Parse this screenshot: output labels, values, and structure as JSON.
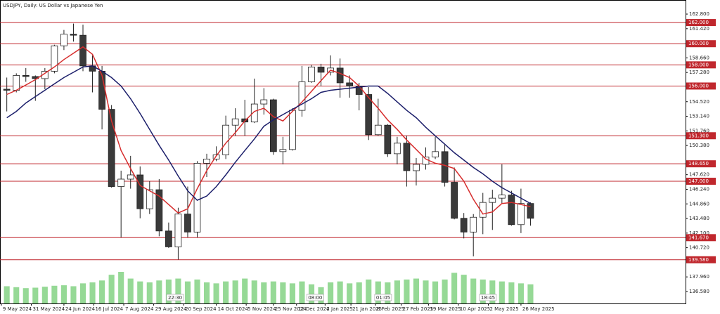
{
  "chart_data": {
    "type": "candlestick",
    "title": "USDJPY, Daily:  US Dollar vs Japanese Yen",
    "x": [
      "2024-05-13",
      "2024-05-20",
      "2024-05-27",
      "2024-06-03",
      "2024-06-10",
      "2024-06-17",
      "2024-06-24",
      "2024-07-01",
      "2024-07-08",
      "2024-07-15",
      "2024-07-22",
      "2024-07-29",
      "2024-08-05",
      "2024-08-12",
      "2024-08-19",
      "2024-08-26",
      "2024-09-02",
      "2024-09-09",
      "2024-09-16",
      "2024-09-23",
      "2024-09-30",
      "2024-10-07",
      "2024-10-14",
      "2024-10-21",
      "2024-10-28",
      "2024-11-04",
      "2024-11-11",
      "2024-11-18",
      "2024-11-25",
      "2024-12-02",
      "2024-12-09",
      "2024-12-16",
      "2024-12-23",
      "2024-12-30",
      "2025-01-06",
      "2025-01-13",
      "2025-01-20",
      "2025-01-27",
      "2025-02-03",
      "2025-02-10",
      "2025-02-17",
      "2025-02-24",
      "2025-03-03",
      "2025-03-10",
      "2025-03-17",
      "2025-03-24",
      "2025-03-31",
      "2025-04-07",
      "2025-04-14",
      "2025-04-21",
      "2025-04-28",
      "2025-05-05",
      "2025-05-12",
      "2025-05-19",
      "2025-05-26",
      "2025-06-02"
    ],
    "open": [
      155.7,
      155.6,
      157.0,
      156.9,
      156.7,
      157.4,
      159.8,
      160.9,
      160.8,
      157.9,
      157.4,
      153.8,
      146.5,
      147.2,
      147.6,
      144.4,
      146.2,
      142.3,
      140.8,
      143.9,
      142.2,
      148.7,
      149.1,
      149.5,
      152.3,
      152.9,
      152.6,
      154.3,
      154.7,
      149.8,
      150.0,
      153.7,
      156.4,
      157.8,
      157.3,
      157.7,
      156.3,
      156.0,
      155.2,
      151.4,
      152.3,
      149.6,
      150.6,
      148.0,
      148.6,
      149.3,
      149.8,
      146.9,
      143.5,
      142.2,
      143.6,
      145.0,
      145.4,
      145.7,
      142.9,
      144.9
    ],
    "high": [
      156.8,
      157.2,
      157.7,
      157.0,
      157.7,
      159.9,
      161.3,
      161.9,
      161.8,
      158.9,
      157.9,
      154.2,
      148.0,
      149.4,
      148.4,
      147.0,
      147.2,
      143.1,
      144.5,
      146.5,
      148.9,
      149.6,
      150.3,
      153.2,
      153.9,
      154.7,
      156.7,
      155.8,
      154.8,
      151.2,
      153.9,
      157.9,
      158.0,
      158.1,
      158.9,
      158.6,
      157.0,
      156.3,
      155.9,
      154.8,
      152.4,
      151.2,
      151.3,
      149.2,
      150.2,
      151.2,
      150.5,
      148.3,
      144.0,
      143.9,
      145.9,
      146.2,
      148.6,
      146.1,
      146.3,
      145.0
    ],
    "low": [
      153.6,
      155.4,
      156.4,
      154.6,
      155.7,
      157.2,
      159.4,
      160.2,
      157.4,
      155.4,
      151.9,
      146.4,
      141.7,
      146.3,
      143.5,
      143.9,
      141.8,
      140.7,
      139.6,
      141.7,
      141.7,
      147.4,
      148.9,
      149.1,
      151.3,
      151.3,
      152.5,
      153.3,
      149.5,
      148.6,
      149.9,
      153.1,
      156.3,
      156.0,
      157.0,
      154.9,
      154.9,
      153.7,
      150.9,
      151.3,
      149.3,
      148.6,
      146.5,
      146.6,
      148.1,
      149.1,
      146.5,
      143.4,
      141.6,
      139.9,
      142.0,
      142.4,
      144.9,
      142.8,
      142.1,
      142.8
    ],
    "close": [
      155.6,
      157.0,
      156.9,
      156.7,
      157.4,
      159.8,
      160.9,
      160.8,
      157.9,
      157.4,
      153.8,
      146.5,
      147.2,
      147.6,
      144.4,
      146.2,
      142.3,
      140.8,
      143.9,
      142.2,
      148.7,
      149.1,
      149.5,
      152.3,
      152.9,
      152.6,
      154.3,
      154.7,
      149.8,
      150.0,
      153.7,
      156.4,
      157.8,
      157.3,
      157.7,
      156.3,
      156.0,
      155.2,
      151.4,
      152.3,
      149.6,
      150.6,
      148.0,
      148.6,
      149.3,
      149.8,
      146.9,
      143.5,
      142.2,
      143.6,
      145.0,
      145.4,
      145.7,
      142.9,
      144.9,
      143.5
    ],
    "up_color": "#ffffff",
    "down_color": "#3a3a3a",
    "ma_lines": [
      {
        "color": "#d62d2d",
        "values": [
          155.2,
          155.6,
          156.1,
          156.6,
          157.2,
          157.8,
          158.5,
          159.1,
          159.7,
          159.0,
          157.0,
          152.7,
          149.9,
          148.2,
          146.6,
          146.1,
          145.6,
          144.8,
          144.0,
          144.4,
          146.3,
          148.0,
          149.4,
          150.6,
          151.6,
          152.7,
          153.6,
          153.9,
          153.1,
          152.7,
          153.6,
          154.5,
          155.5,
          156.5,
          157.5,
          157.2,
          156.8,
          156.0,
          154.9,
          153.9,
          152.8,
          151.9,
          150.9,
          150.0,
          149.1,
          148.7,
          148.5,
          148.2,
          147.0,
          145.3,
          143.9,
          144.1,
          144.9,
          145.0,
          144.8,
          144.6
        ]
      },
      {
        "color": "#1c1f6b",
        "values": [
          153.0,
          153.6,
          154.4,
          155.0,
          155.6,
          156.2,
          156.8,
          157.3,
          157.8,
          157.9,
          157.4,
          156.8,
          156.0,
          154.8,
          153.4,
          151.9,
          150.4,
          149.0,
          147.5,
          146.1,
          145.2,
          145.6,
          146.5,
          147.6,
          148.8,
          149.9,
          151.0,
          152.2,
          152.8,
          153.3,
          153.8,
          154.3,
          154.8,
          155.4,
          155.6,
          155.7,
          155.8,
          155.9,
          156.0,
          156.0,
          155.3,
          154.5,
          153.7,
          153.0,
          152.1,
          151.3,
          150.5,
          149.7,
          149.0,
          148.3,
          147.7,
          147.0,
          146.4,
          145.9,
          145.4,
          144.9
        ]
      }
    ],
    "volume": {
      "color": "#7ccf7c",
      "values": [
        180,
        170,
        160,
        165,
        175,
        185,
        190,
        180,
        210,
        220,
        240,
        300,
        330,
        260,
        230,
        220,
        240,
        250,
        260,
        230,
        250,
        220,
        210,
        230,
        240,
        260,
        240,
        220,
        230,
        220,
        210,
        230,
        200,
        170,
        220,
        230,
        210,
        220,
        250,
        230,
        220,
        240,
        250,
        260,
        240,
        230,
        250,
        320,
        300,
        260,
        250,
        240,
        230,
        220,
        210,
        200
      ]
    },
    "levels": [
      {
        "value": 162.0,
        "label": "162.000"
      },
      {
        "value": 160.0,
        "label": "160.000"
      },
      {
        "value": 158.0,
        "label": "158.000"
      },
      {
        "value": 156.0,
        "label": "156.000"
      },
      {
        "value": 151.3,
        "label": "151.300"
      },
      {
        "value": 148.65,
        "label": "148.650"
      },
      {
        "value": 147.0,
        "label": "147.000"
      },
      {
        "value": 141.67,
        "label": "141.670"
      },
      {
        "value": 139.58,
        "label": "139.580"
      }
    ],
    "level_color": "#c0272d",
    "event_labels": [
      {
        "x": "2024-09-08",
        "text": "22:30"
      },
      {
        "x": "2024-12-20",
        "text": "08:00"
      },
      {
        "x": "2025-02-08",
        "text": "01:05"
      },
      {
        "x": "2025-04-26",
        "text": "18:45"
      }
    ],
    "ylim": [
      135.45,
      164.13
    ],
    "yticks": [
      {
        "value": 162.8,
        "label": "162.800"
      },
      {
        "value": 161.42,
        "label": "161.420"
      },
      {
        "value": 158.66,
        "label": "158.660"
      },
      {
        "value": 157.28,
        "label": "157.280"
      },
      {
        "value": 154.52,
        "label": "154.520"
      },
      {
        "value": 153.14,
        "label": "153.140"
      },
      {
        "value": 151.76,
        "label": "151.760"
      },
      {
        "value": 150.38,
        "label": "150.380"
      },
      {
        "value": 147.62,
        "label": "147.620"
      },
      {
        "value": 146.24,
        "label": "146.240"
      },
      {
        "value": 144.86,
        "label": "144.860"
      },
      {
        "value": 143.48,
        "label": "143.480"
      },
      {
        "value": 142.1,
        "label": "142.100"
      },
      {
        "value": 140.72,
        "label": "140.720"
      },
      {
        "value": 137.96,
        "label": "137.960"
      },
      {
        "value": 136.58,
        "label": "136.580"
      }
    ],
    "xlim": [
      "2024-05-08",
      "2025-09-24"
    ],
    "xticks": [
      {
        "value": "2024-05-09",
        "label": "9 May 2024"
      },
      {
        "value": "2024-05-31",
        "label": "31 May 2024"
      },
      {
        "value": "2024-06-24",
        "label": "24 Jun 2024"
      },
      {
        "value": "2024-07-16",
        "label": "16 Jul 2024"
      },
      {
        "value": "2024-08-07",
        "label": "7 Aug 2024"
      },
      {
        "value": "2024-08-29",
        "label": "29 Aug 2024"
      },
      {
        "value": "2024-09-20",
        "label": "20 Sep 2024"
      },
      {
        "value": "2024-10-14",
        "label": "14 Oct 2024"
      },
      {
        "value": "2024-11-05",
        "label": "5 Nov 2024"
      },
      {
        "value": "2024-11-25",
        "label": "25 Nov 2024"
      },
      {
        "value": "2024-12-12",
        "label": "12 Dec 2024"
      },
      {
        "value": "2025-01-02",
        "label": "2 Jan 2025"
      },
      {
        "value": "2025-01-21",
        "label": "21 Jan 2025"
      },
      {
        "value": "2025-02-08",
        "label": "8 Feb 2025"
      },
      {
        "value": "2025-02-27",
        "label": "27 Feb 2025"
      },
      {
        "value": "2025-03-19",
        "label": "19 Mar 2025"
      },
      {
        "value": "2025-04-10",
        "label": "10 Apr 2025"
      },
      {
        "value": "2025-05-02",
        "label": "2 May 2025"
      },
      {
        "value": "2025-05-26",
        "label": "26 May 2025"
      }
    ]
  }
}
